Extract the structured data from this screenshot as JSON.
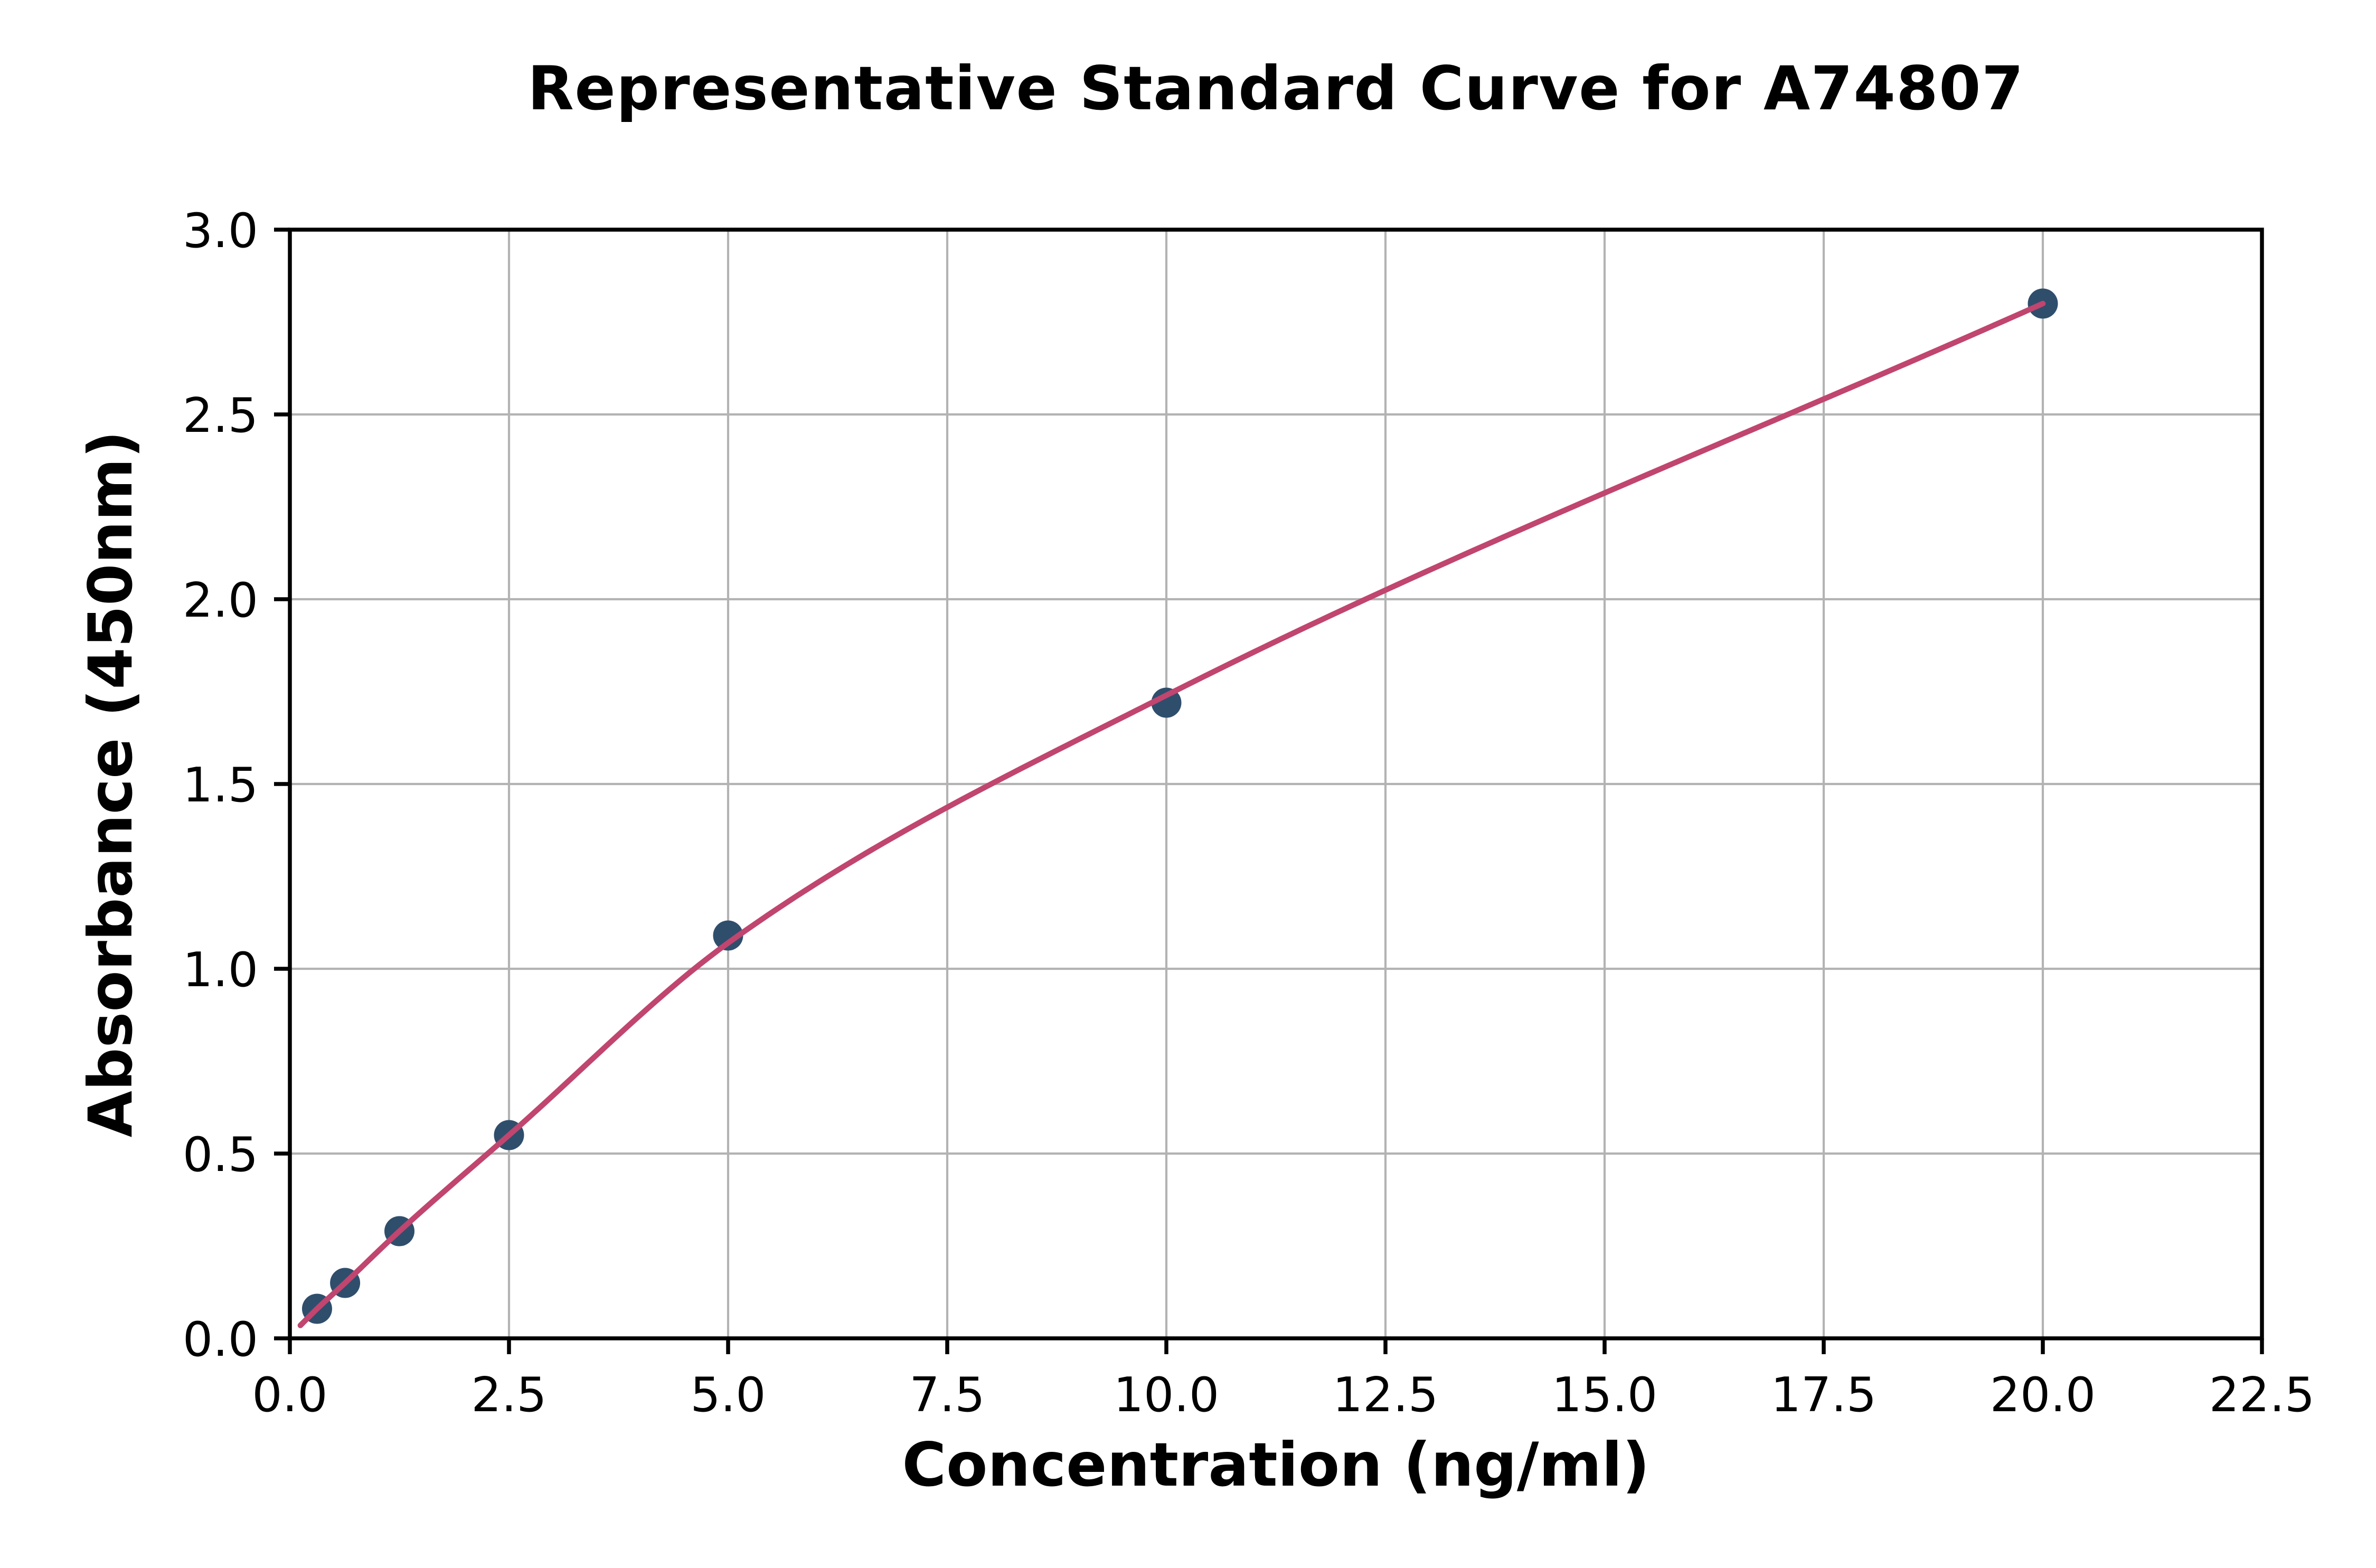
{
  "chart_data": {
    "type": "scatter",
    "title": "Representative Standard Curve for A74807",
    "xlabel": "Concentration (ng/ml)",
    "ylabel": "Absorbance (450nm)",
    "xlim": [
      0,
      22.5
    ],
    "ylim": [
      0,
      3.0
    ],
    "grid": true,
    "legend": "none",
    "xticks": {
      "values": [
        0,
        2.5,
        5,
        7.5,
        10,
        12.5,
        15,
        17.5,
        20,
        22.5
      ],
      "labels": [
        "0.0",
        "2.5",
        "5.0",
        "7.5",
        "10.0",
        "12.5",
        "15.0",
        "17.5",
        "20.0",
        "22.5"
      ]
    },
    "yticks": {
      "values": [
        0,
        0.5,
        1,
        1.5,
        2,
        2.5,
        3
      ],
      "labels": [
        "0.0",
        "0.5",
        "1.0",
        "1.5",
        "2.0",
        "2.5",
        "3.0"
      ]
    },
    "series": [
      {
        "name": "standard-points",
        "type": "scatter",
        "x": [
          0.31,
          0.63,
          1.25,
          2.5,
          5.0,
          10.0,
          20.0
        ],
        "y": [
          0.08,
          0.15,
          0.29,
          0.55,
          1.09,
          1.72,
          2.8
        ],
        "color": "#2f4e6c",
        "marker_radius": 9.5
      },
      {
        "name": "fitted-curve",
        "type": "line",
        "smooth": true,
        "x": [
          0.12,
          0.31,
          0.63,
          1.25,
          2.5,
          5.0,
          10.0,
          20.0
        ],
        "y": [
          0.035,
          0.08,
          0.15,
          0.29,
          0.55,
          1.07,
          1.74,
          2.8
        ],
        "color": "#c0456f",
        "width": 3.5
      }
    ],
    "colors": {
      "background": "#ffffff",
      "grid": "#b3b3b3",
      "axis": "#000000",
      "text": "#000000"
    }
  }
}
